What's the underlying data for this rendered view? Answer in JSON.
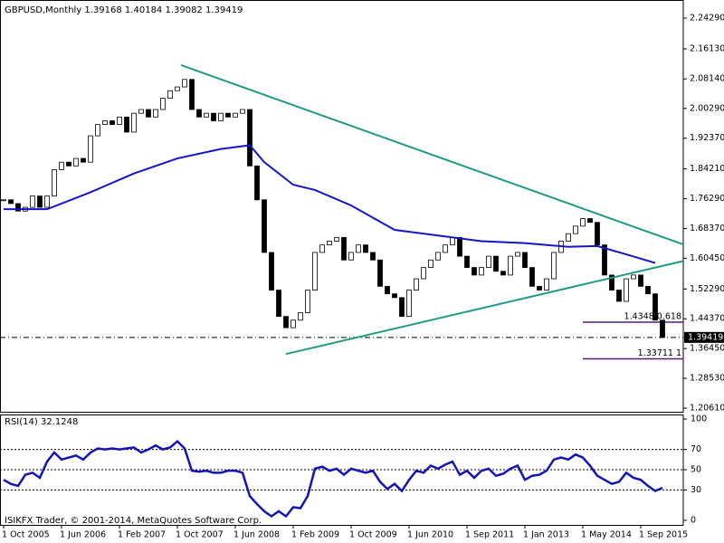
{
  "chart_data": [
    {
      "type": "candlestick",
      "title": "GBPUSD,Monthly  1.39168 1.40184 1.39082 1.39419",
      "xlim": [
        -0.5,
        93.875
      ],
      "ylim": [
        1.1965,
        2.2911
      ],
      "yticks": [
        {
          "value": 2.2429,
          "label": "2.24290"
        },
        {
          "value": 2.1613,
          "label": "2.16130"
        },
        {
          "value": 2.0814,
          "label": "2.08140"
        },
        {
          "value": 2.0029,
          "label": "2.00290"
        },
        {
          "value": 1.9237,
          "label": "1.92370"
        },
        {
          "value": 1.8421,
          "label": "1.84210"
        },
        {
          "value": 1.7629,
          "label": "1.76290"
        },
        {
          "value": 1.6837,
          "label": "1.68370"
        },
        {
          "value": 1.6045,
          "label": "1.60450"
        },
        {
          "value": 1.5229,
          "label": "1.52290"
        },
        {
          "value": 1.4437,
          "label": "1.44370"
        },
        {
          "value": 1.3645,
          "label": "1.36450"
        },
        {
          "value": 1.2853,
          "label": "1.28530"
        },
        {
          "value": 1.2061,
          "label": "1.20610"
        }
      ],
      "values": [
        1.76,
        1.75,
        1.73,
        1.74,
        1.77,
        1.74,
        1.77,
        1.84,
        1.86,
        1.85,
        1.87,
        1.86,
        1.93,
        1.96,
        1.97,
        1.96,
        1.98,
        1.94,
        1.99,
        2.0,
        1.98,
        2.0,
        2.03,
        2.05,
        2.06,
        2.08,
        2.0,
        1.98,
        1.99,
        1.97,
        1.99,
        1.98,
        1.99,
        2.0,
        1.85,
        1.76,
        1.62,
        1.52,
        1.45,
        1.42,
        1.44,
        1.46,
        1.52,
        1.62,
        1.64,
        1.65,
        1.66,
        1.6,
        1.62,
        1.64,
        1.62,
        1.6,
        1.53,
        1.51,
        1.5,
        1.45,
        1.52,
        1.55,
        1.58,
        1.6,
        1.62,
        1.64,
        1.66,
        1.61,
        1.58,
        1.56,
        1.58,
        1.61,
        1.57,
        1.56,
        1.61,
        1.62,
        1.58,
        1.53,
        1.52,
        1.55,
        1.62,
        1.65,
        1.67,
        1.69,
        1.71,
        1.7,
        1.64,
        1.56,
        1.52,
        1.49,
        1.55,
        1.56,
        1.53,
        1.51,
        1.44,
        1.39419
      ],
      "up_color": "#ffffff",
      "down_color": "#000000",
      "moving_average": {
        "color": "#1414c8",
        "x": [
          0,
          6,
          12,
          18,
          24,
          30,
          34,
          36,
          40,
          43,
          48,
          54,
          60,
          66,
          72,
          78,
          82,
          86,
          90
        ],
        "values": [
          1.735,
          1.735,
          1.78,
          1.83,
          1.87,
          1.895,
          1.905,
          1.86,
          1.8,
          1.786,
          1.745,
          1.68,
          1.665,
          1.65,
          1.645,
          1.635,
          1.637,
          1.615,
          1.592
        ]
      },
      "trendlines": [
        {
          "color": "#1f9a84",
          "x": [
            24.5,
            94.5
          ],
          "values": [
            2.118,
            1.637
          ]
        },
        {
          "color": "#1f9a84",
          "x": [
            39,
            94.5
          ],
          "values": [
            1.35,
            1.6
          ]
        }
      ],
      "levels": [
        {
          "x": 80,
          "value": 1.4348,
          "label": "1.4348  0.618",
          "color": "#5a1a6e"
        },
        {
          "x": 80,
          "value": 1.33711,
          "label": "1.33711  1",
          "color": "#5a1a6e"
        }
      ]
    },
    {
      "type": "line",
      "title": "RSI(14) 32.1248",
      "copyright": "ISIKFX Trader, © 2001-2014, MetaQuotes Software Corp.",
      "xlim": [
        -0.5,
        93.875
      ],
      "ylim": [
        -4.5,
        104.5
      ],
      "yticks": [
        100,
        70,
        50,
        30,
        0
      ],
      "level_lines": [
        70,
        50,
        30
      ],
      "color": "#1414b4",
      "xticks": [
        {
          "value": 0,
          "label": "1 Oct 2005"
        },
        {
          "value": 8,
          "label": "1 Jun 2006"
        },
        {
          "value": 16,
          "label": "1 Feb 2007"
        },
        {
          "value": 24,
          "label": "1 Oct 2007"
        },
        {
          "value": 32,
          "label": "1 Jun 2008"
        },
        {
          "value": 40,
          "label": "1 Feb 2009"
        },
        {
          "value": 48,
          "label": "1 Oct 2009"
        },
        {
          "value": 56,
          "label": "1 Jun 2010"
        },
        {
          "value": 64,
          "label": "1 Sep 2011"
        },
        {
          "value": 72,
          "label": "1 Jan 2013"
        },
        {
          "value": 80,
          "label": "1 May 2014"
        },
        {
          "value": 88,
          "label": "1 Sep 2015"
        }
      ],
      "values": [
        40,
        36,
        34,
        45,
        47,
        42,
        58,
        67,
        60,
        62,
        64,
        60,
        67,
        71,
        70,
        71,
        70,
        71,
        72,
        67,
        70,
        74,
        70,
        72,
        78,
        71,
        49,
        48,
        49,
        47,
        47,
        49,
        49,
        47,
        24,
        16,
        9,
        4,
        9,
        4,
        13,
        12,
        24,
        51,
        53,
        49,
        51,
        45,
        51,
        49,
        47,
        49,
        38,
        31,
        36,
        29,
        40,
        49,
        47,
        54,
        51,
        55,
        58,
        45,
        49,
        42,
        49,
        51,
        44,
        46,
        51,
        54,
        40,
        44,
        45,
        49,
        60,
        62,
        60,
        65,
        62,
        54,
        44,
        40,
        36,
        38,
        47,
        42,
        40,
        34,
        29,
        32.1248
      ]
    }
  ]
}
